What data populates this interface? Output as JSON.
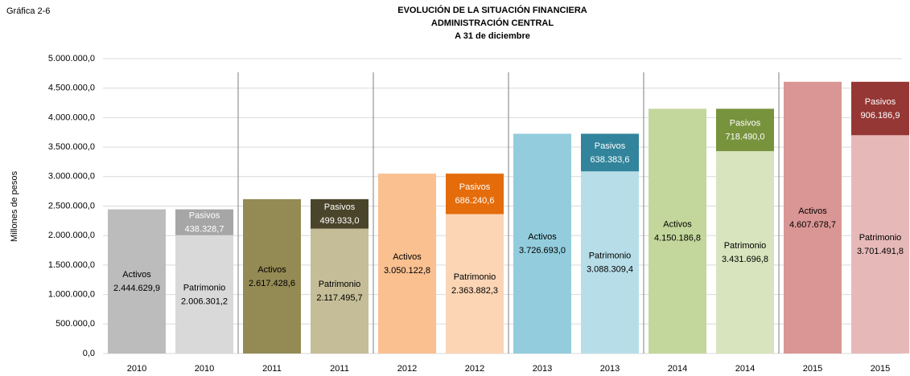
{
  "chart_data": {
    "type": "bar",
    "label": "Gráfica 2-6",
    "title": "EVOLUCIÓN DE LA SITUACIÓN FINANCIERA",
    "subtitle": "ADMINISTRACIÓN CENTRAL",
    "subtitle2": "A 31 de diciembre",
    "y_label": "Millones de pesos",
    "categories": [
      "2010",
      "2010",
      "2011",
      "2011",
      "2012",
      "2012",
      "2013",
      "2013",
      "2014",
      "2014",
      "2015",
      "2015"
    ],
    "series": [
      {
        "name": "Activos",
        "values": [
          2444629.9,
          null,
          2617428.6,
          null,
          3050122.8,
          null,
          3726693.0,
          null,
          4150186.8,
          null,
          4607678.7,
          null
        ],
        "value_labels": [
          "2.444.629,9",
          null,
          "2.617.428,6",
          null,
          "3.050.122,8",
          null,
          "3.726.693,0",
          null,
          "4.150.186,8",
          null,
          "4.607.678,7",
          null
        ],
        "colors": [
          "#bcbcbc",
          null,
          "#948a54",
          null,
          "#fac090",
          null,
          "#93cddd",
          null,
          "#c3d69b",
          null,
          "#d99694",
          null
        ]
      },
      {
        "name": "Patrimonio",
        "values": [
          null,
          2006301.2,
          null,
          2117495.7,
          null,
          2363882.3,
          null,
          3088309.4,
          null,
          3431696.8,
          null,
          3701491.8
        ],
        "value_labels": [
          null,
          "2.006.301,2",
          null,
          "2.117.495,7",
          null,
          "2.363.882,3",
          null,
          "3.088.309,4",
          null,
          "3.431.696,8",
          null,
          "3.701.491,8"
        ],
        "colors": [
          null,
          "#d9d9d9",
          null,
          "#c4bd97",
          null,
          "#fcd5b5",
          null,
          "#b7dee8",
          null,
          "#d7e4bd",
          null,
          "#e6b9b8"
        ]
      },
      {
        "name": "Pasivos",
        "values": [
          null,
          438328.7,
          null,
          499933.0,
          null,
          686240.6,
          null,
          638383.6,
          null,
          718490.0,
          null,
          906186.9
        ],
        "value_labels": [
          null,
          "438.328,7",
          null,
          "499.933,0",
          null,
          "686.240,6",
          null,
          "638.383,6",
          null,
          "718.490,0",
          null,
          "906.186,9"
        ],
        "colors": [
          null,
          "#a6a6a6",
          null,
          "#4a452a",
          null,
          "#e46c0a",
          null,
          "#31849b",
          null,
          "#77933c",
          null,
          "#953735"
        ]
      }
    ],
    "stacked": true,
    "ylim": [
      0,
      5000000
    ],
    "yticks": [
      {
        "value": 0,
        "label": "0,0"
      },
      {
        "value": 500000,
        "label": "500.000,0"
      },
      {
        "value": 1000000,
        "label": "1.000.000,0"
      },
      {
        "value": 1500000,
        "label": "1.500.000,0"
      },
      {
        "value": 2000000,
        "label": "2.000.000,0"
      },
      {
        "value": 2500000,
        "label": "2.500.000,0"
      },
      {
        "value": 3000000,
        "label": "3.000.000,0"
      },
      {
        "value": 3500000,
        "label": "3.500.000,0"
      },
      {
        "value": 4000000,
        "label": "4.000.000,0"
      },
      {
        "value": 4500000,
        "label": "4.500.000,0"
      },
      {
        "value": 5000000,
        "label": "5.000.000,0"
      }
    ],
    "grid": true
  }
}
